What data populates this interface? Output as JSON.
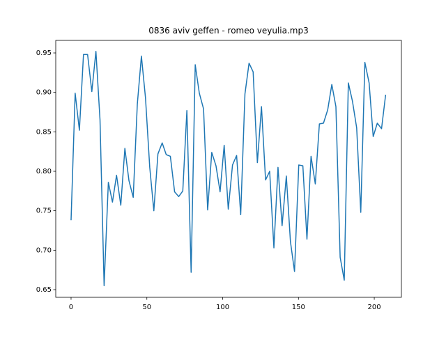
{
  "chart_data": {
    "type": "line",
    "title": "0836 aviv geffen - romeo veyulia.mp3",
    "x": [
      0,
      2.7,
      5.5,
      8.2,
      10.9,
      13.7,
      16.4,
      19.1,
      21.8,
      24.6,
      27.3,
      30.0,
      32.8,
      35.5,
      38.2,
      41.0,
      43.7,
      46.4,
      49.1,
      51.9,
      54.6,
      57.3,
      60.1,
      62.8,
      65.5,
      68.3,
      71.0,
      73.7,
      76.4,
      79.2,
      81.9,
      84.6,
      87.4,
      90.1,
      92.8,
      95.6,
      98.3,
      101.0,
      103.7,
      106.5,
      109.2,
      111.9,
      114.7,
      117.4,
      120.1,
      122.9,
      125.6,
      128.3,
      131.0,
      133.8,
      136.5,
      139.2,
      142.0,
      144.7,
      147.4,
      150.2,
      152.9,
      155.6,
      158.3,
      161.1,
      163.8,
      166.5,
      169.3,
      172.0,
      174.7,
      177.5,
      180.2,
      182.9,
      185.6,
      188.4,
      191.1,
      193.8,
      196.6,
      199.3,
      202.0,
      204.8,
      207.5
    ],
    "series": [
      {
        "color": "#1f77b4",
        "values": [
          0.738,
          0.899,
          0.852,
          0.948,
          0.948,
          0.901,
          0.952,
          0.865,
          0.655,
          0.786,
          0.761,
          0.795,
          0.757,
          0.829,
          0.788,
          0.767,
          0.885,
          0.946,
          0.893,
          0.805,
          0.75,
          0.822,
          0.836,
          0.821,
          0.819,
          0.774,
          0.768,
          0.775,
          0.877,
          0.672,
          0.935,
          0.899,
          0.879,
          0.751,
          0.824,
          0.807,
          0.774,
          0.833,
          0.752,
          0.808,
          0.82,
          0.745,
          0.898,
          0.937,
          0.926,
          0.811,
          0.882,
          0.789,
          0.8,
          0.703,
          0.805,
          0.731,
          0.794,
          0.711,
          0.673,
          0.808,
          0.807,
          0.714,
          0.819,
          0.784,
          0.86,
          0.861,
          0.878,
          0.91,
          0.882,
          0.691,
          0.662,
          0.912,
          0.889,
          0.855,
          0.748,
          0.938,
          0.912,
          0.844,
          0.861,
          0.854,
          0.897
        ]
      }
    ],
    "xlim": [
      -10.1,
      217.9
    ],
    "ylim": [
      0.6403,
      0.9659
    ],
    "xticks": [
      0,
      50,
      100,
      150,
      200
    ],
    "yticks": [
      {
        "value": 0.65,
        "label": "0.65"
      },
      {
        "value": 0.7,
        "label": "0.70"
      },
      {
        "value": 0.75,
        "label": "0.75"
      },
      {
        "value": 0.8,
        "label": "0.80"
      },
      {
        "value": 0.85,
        "label": "0.85"
      },
      {
        "value": 0.9,
        "label": "0.90"
      },
      {
        "value": 0.95,
        "label": "0.95"
      }
    ]
  }
}
